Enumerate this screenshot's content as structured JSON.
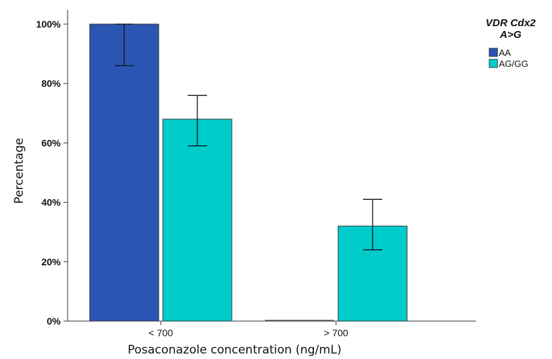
{
  "chart_data": {
    "type": "bar",
    "categories": [
      "< 700",
      "> 700"
    ],
    "xlabel": "Posaconazole concentration (ng/mL)",
    "ylabel": "Percentage",
    "ylim": [
      0,
      100
    ],
    "yticks": [
      "0%",
      "20%",
      "40%",
      "60%",
      "80%",
      "100%"
    ],
    "grid": false,
    "legend": {
      "position": "top-right",
      "title_line1": "VDR Cdx2",
      "title_line2": "A>G"
    },
    "series": [
      {
        "name": "AA",
        "color": "#2b55b3",
        "values": [
          100,
          0
        ],
        "error_low": [
          86,
          0
        ],
        "error_high": [
          100,
          0
        ]
      },
      {
        "name": "AG/GG",
        "color": "#00cccc",
        "values": [
          68,
          32
        ],
        "error_low": [
          59,
          24
        ],
        "error_high": [
          76,
          41
        ]
      }
    ]
  }
}
